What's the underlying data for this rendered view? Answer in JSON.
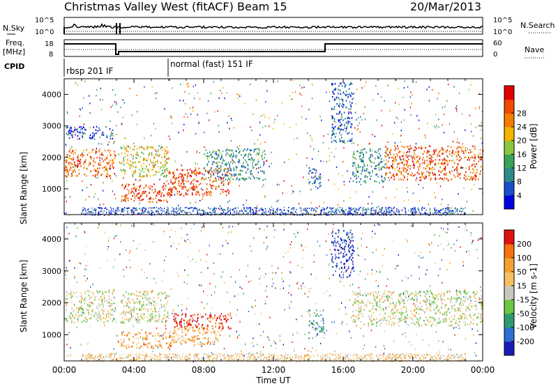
{
  "header": {
    "title": "Christmas Valley West (fitACF)",
    "beam": "Beam 15",
    "date": "20/Mar/2013"
  },
  "params": {
    "nsky_label": "N.Sky",
    "nsearch_label": "N.Search",
    "freq_label_1": "Freq.",
    "freq_label_2": "[MHz]",
    "nave_label": "Nave",
    "cpid_label": "CPID",
    "left_ticks_top": [
      "10^5",
      "10^0"
    ],
    "right_ticks_top": [
      "10^5",
      "10^0"
    ],
    "freq_ticks": [
      "18",
      "8"
    ],
    "nave_ticks": [
      "60",
      "0"
    ],
    "cpid_modes": [
      {
        "label": "rbsp 201 IF",
        "start_h": 0
      },
      {
        "label": "normal (fast) 151 IF",
        "start_h": 6
      }
    ]
  },
  "chart_data": [
    {
      "type": "heatmap",
      "name": "power",
      "ylabel": "Slant Range [km]",
      "ylim": [
        180,
        4500
      ],
      "yticks": [
        1000,
        2000,
        3000,
        4000
      ],
      "xlim": [
        0,
        24
      ],
      "colorbar": {
        "label": "Power [dB]",
        "ticks": [
          "4",
          "8",
          "12",
          "16",
          "20",
          "24",
          "28"
        ],
        "colors": [
          "#0000e0",
          "#1a4fc8",
          "#2e8b8b",
          "#3aa35a",
          "#8cc63f",
          "#f5b400",
          "#f57c00",
          "#ef4a00",
          "#e00000"
        ]
      },
      "regions": [
        {
          "t0": 0.0,
          "t1": 2.9,
          "r0": 1400,
          "r1": 2300,
          "v": 0.78
        },
        {
          "t0": 0.1,
          "t1": 2.8,
          "r0": 2600,
          "r1": 3000,
          "v": 0.15
        },
        {
          "t0": 3.2,
          "t1": 6.0,
          "r0": 1400,
          "r1": 2400,
          "v": 0.55
        },
        {
          "t0": 3.2,
          "t1": 6.2,
          "r0": 600,
          "r1": 1200,
          "v": 0.85
        },
        {
          "t0": 6.0,
          "t1": 9.5,
          "r0": 800,
          "r1": 1700,
          "v": 0.85
        },
        {
          "t0": 8.0,
          "t1": 11.5,
          "r0": 1300,
          "r1": 2300,
          "v": 0.3
        },
        {
          "t0": 14.0,
          "t1": 14.7,
          "r0": 1000,
          "r1": 1700,
          "v": 0.2
        },
        {
          "t0": 15.3,
          "t1": 16.5,
          "r0": 2500,
          "r1": 4400,
          "v": 0.2
        },
        {
          "t0": 16.5,
          "t1": 18.4,
          "r0": 1200,
          "r1": 2300,
          "v": 0.3
        },
        {
          "t0": 18.4,
          "t1": 24.0,
          "r0": 1300,
          "r1": 2400,
          "v": 0.8
        }
      ]
    },
    {
      "type": "heatmap",
      "name": "velocity",
      "xlabel": "Time UT",
      "ylabel": "Slant Range [km]",
      "ylim": [
        180,
        4500
      ],
      "yticks": [
        1000,
        2000,
        3000,
        4000
      ],
      "xlim": [
        0,
        24
      ],
      "xticks": [
        "00:00",
        "04:00",
        "08:00",
        "12:00",
        "16:00",
        "20:00",
        "00:00"
      ],
      "colorbar": {
        "label": "Velocity [m s-1]",
        "ticks": [
          "200",
          "100",
          "50",
          "15",
          "-15",
          "-50",
          "-100",
          "-200"
        ],
        "colors": [
          "#1a1ab4",
          "#2f6fd0",
          "#2e9a72",
          "#6cc640",
          "#c8c8c0",
          "#f5c060",
          "#f5a030",
          "#f57010",
          "#e01010"
        ]
      },
      "regions": [
        {
          "t0": 0.0,
          "t1": 2.9,
          "r0": 1400,
          "r1": 2400,
          "v": 0.5
        },
        {
          "t0": 3.2,
          "t1": 6.0,
          "r0": 1400,
          "r1": 2400,
          "v": 0.5
        },
        {
          "t0": 3.2,
          "t1": 6.2,
          "r0": 600,
          "r1": 1100,
          "v": 0.72
        },
        {
          "t0": 6.0,
          "t1": 9.0,
          "r0": 700,
          "r1": 1300,
          "v": 0.7
        },
        {
          "t0": 6.2,
          "t1": 9.6,
          "r0": 1200,
          "r1": 1700,
          "v": 0.95
        },
        {
          "t0": 14.0,
          "t1": 14.9,
          "r0": 900,
          "r1": 1800,
          "v": 0.3
        },
        {
          "t0": 15.3,
          "t1": 16.6,
          "r0": 2800,
          "r1": 4300,
          "v": 0.08
        },
        {
          "t0": 16.5,
          "t1": 24.0,
          "r0": 1300,
          "r1": 2400,
          "v": 0.5
        }
      ]
    }
  ]
}
